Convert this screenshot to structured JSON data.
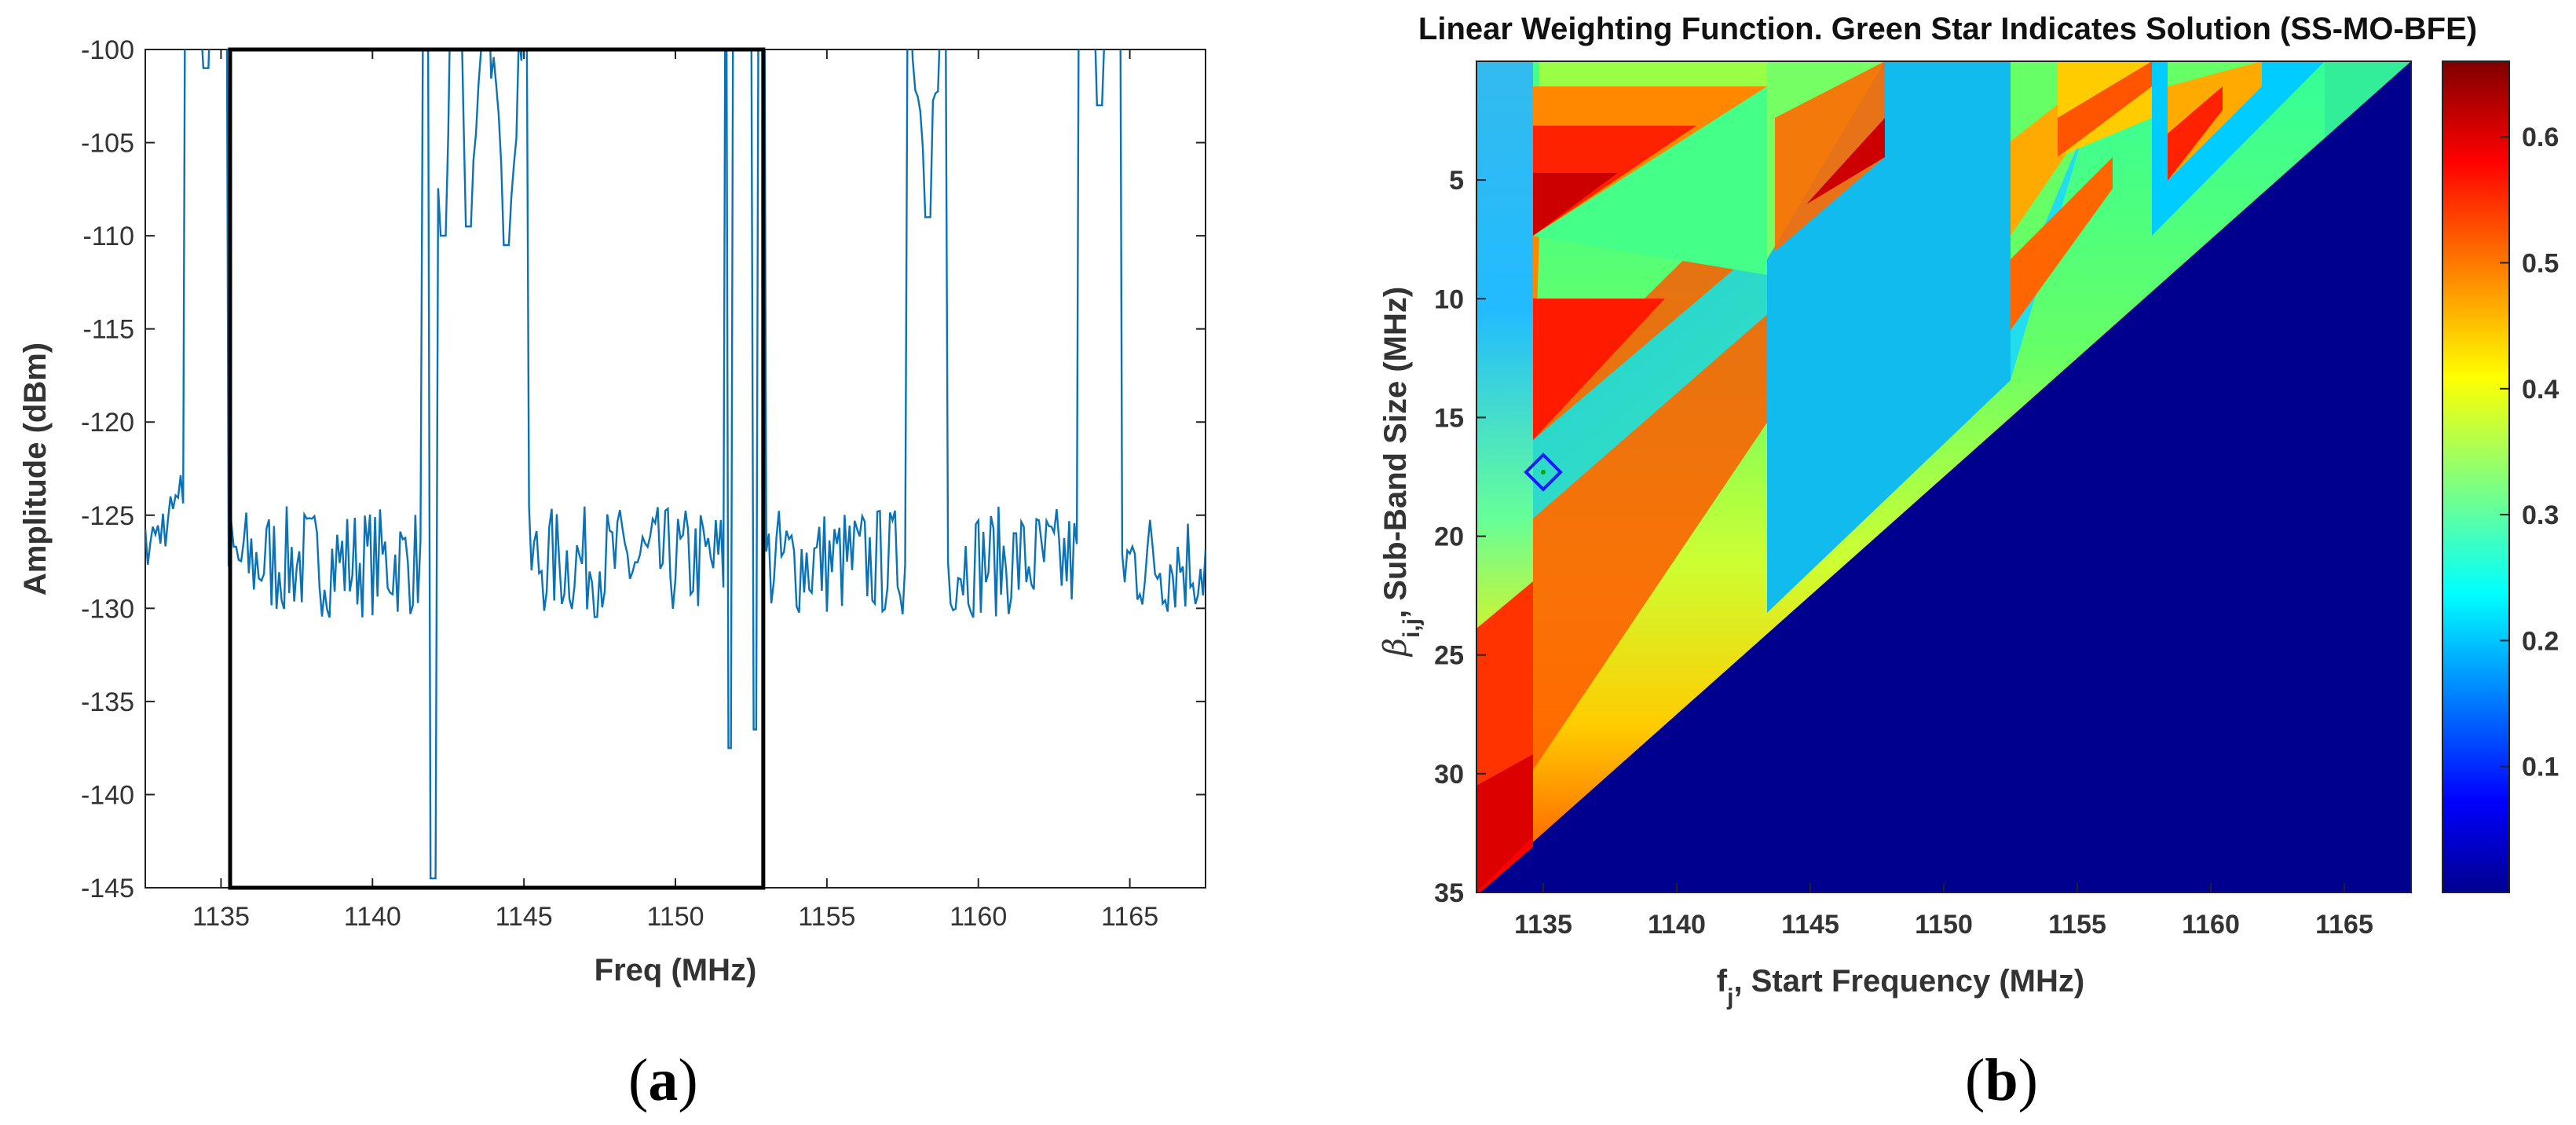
{
  "chart_data": [
    {
      "panel": "a",
      "type": "line",
      "title": "",
      "xlabel": "Freq (MHz)",
      "ylabel": "Amplitude (dBm)",
      "xlim": [
        1132.5,
        1167.5
      ],
      "ylim": [
        -145,
        -100
      ],
      "xticks": [
        1135,
        1140,
        1145,
        1150,
        1155,
        1160,
        1165
      ],
      "yticks": [
        -100,
        -105,
        -110,
        -115,
        -120,
        -125,
        -130,
        -135,
        -140,
        -145
      ],
      "series": [
        {
          "name": "spectrum",
          "color": "#1f77b4",
          "baseline": -127.5,
          "peaks": [
            {
              "x": 1134.5,
              "y": -101
            },
            {
              "x": 1142.3,
              "y": -110
            },
            {
              "x": 1143.2,
              "y": -109.5
            },
            {
              "x": 1144.4,
              "y": -110.5
            },
            {
              "x": 1152.3,
              "y": -99.8
            },
            {
              "x": 1158.3,
              "y": -109
            },
            {
              "x": 1164.0,
              "y": -103
            }
          ],
          "dips": [
            {
              "x": 1142.0,
              "y": -144.5
            },
            {
              "x": 1151.8,
              "y": -137.5
            },
            {
              "x": 1152.6,
              "y": -136.5
            }
          ]
        }
      ],
      "highlight_box": {
        "x_range": [
          1135.3,
          1152.9
        ],
        "y_range": [
          -145,
          -100
        ]
      }
    },
    {
      "panel": "b",
      "type": "heatmap",
      "title": "Linear Weighting Function. Green Star Indicates Solution (SS-MO-BFE)",
      "xlabel": "f",
      "xlabel_sub": "j",
      "xlabel_rest": ", Start Frequency (MHz)",
      "ylabel_symbol": "β",
      "ylabel_sub": "i,j",
      "ylabel_rest": ", Sub-Band Size (MHz)",
      "xlim": [
        1132.5,
        1167.5
      ],
      "ylim": [
        0,
        35
      ],
      "xticks": [
        1135,
        1140,
        1145,
        1150,
        1155,
        1160,
        1165
      ],
      "yticks": [
        5,
        10,
        15,
        20,
        25,
        30,
        35
      ],
      "colorbar": {
        "min": 0,
        "max": 0.66,
        "ticks": [
          0.1,
          0.2,
          0.3,
          0.4,
          0.5,
          0.6
        ],
        "colormap": "jet"
      },
      "solution_marker": {
        "x": 1135.0,
        "y": 17.3,
        "shape": "diamond"
      }
    }
  ],
  "captions": {
    "a": "(a)",
    "b": "(b)"
  }
}
